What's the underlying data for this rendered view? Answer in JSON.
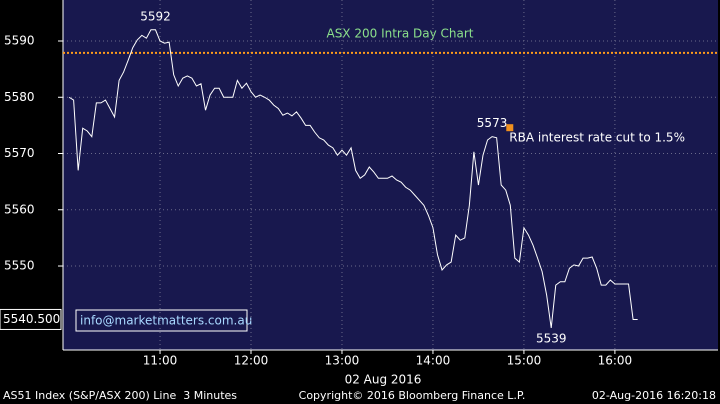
{
  "chart_data": {
    "type": "line",
    "title": "ASX 200 Intra Day Chart",
    "title_color": "#8be08b",
    "x_label": "02 Aug 2016",
    "x": [
      "10:00",
      "10:03",
      "10:06",
      "10:09",
      "10:12",
      "10:15",
      "10:18",
      "10:21",
      "10:24",
      "10:27",
      "10:30",
      "10:33",
      "10:36",
      "10:39",
      "10:42",
      "10:45",
      "10:48",
      "10:51",
      "10:54",
      "10:57",
      "11:00",
      "11:03",
      "11:06",
      "11:09",
      "11:12",
      "11:15",
      "11:18",
      "11:21",
      "11:24",
      "11:27",
      "11:30",
      "11:33",
      "11:36",
      "11:39",
      "11:42",
      "11:45",
      "11:48",
      "11:51",
      "11:54",
      "11:57",
      "12:00",
      "12:03",
      "12:06",
      "12:09",
      "12:12",
      "12:15",
      "12:18",
      "12:21",
      "12:24",
      "12:27",
      "12:30",
      "12:33",
      "12:36",
      "12:39",
      "12:42",
      "12:45",
      "12:48",
      "12:51",
      "12:54",
      "12:57",
      "13:00",
      "13:03",
      "13:06",
      "13:09",
      "13:12",
      "13:15",
      "13:18",
      "13:21",
      "13:24",
      "13:27",
      "13:30",
      "13:33",
      "13:36",
      "13:39",
      "13:42",
      "13:45",
      "13:48",
      "13:51",
      "13:54",
      "13:57",
      "14:00",
      "14:03",
      "14:06",
      "14:09",
      "14:12",
      "14:15",
      "14:18",
      "14:21",
      "14:24",
      "14:27",
      "14:30",
      "14:33",
      "14:36",
      "14:39",
      "14:42",
      "14:45",
      "14:48",
      "14:51",
      "14:54",
      "14:57",
      "15:00",
      "15:03",
      "15:06",
      "15:09",
      "15:12",
      "15:15",
      "15:18",
      "15:21",
      "15:24",
      "15:27",
      "15:30",
      "15:33",
      "15:36",
      "15:39",
      "15:42",
      "15:45",
      "15:48",
      "15:51",
      "15:54",
      "15:57",
      "16:00",
      "16:03",
      "16:06",
      "16:09",
      "16:12",
      "16:15"
    ],
    "series": [
      {
        "name": "AS51 Index",
        "color": "#ffffff",
        "values": [
          5580,
          5579.5,
          5567,
          5574.5,
          5574,
          5573,
          5579,
          5579,
          5579.5,
          5578,
          5576.5,
          5583,
          5584.5,
          5586.6,
          5588.8,
          5590.2,
          5591,
          5590.5,
          5592,
          5592,
          5590,
          5589.6,
          5589.8,
          5584,
          5582,
          5583.4,
          5583.8,
          5583.4,
          5582,
          5582.4,
          5577.7,
          5580.4,
          5581.6,
          5581.6,
          5580,
          5580,
          5580,
          5583,
          5581.6,
          5582.5,
          5581,
          5580,
          5580.4,
          5580,
          5579.5,
          5578.6,
          5578,
          5576.8,
          5577.2,
          5576.7,
          5577.4,
          5576.3,
          5575,
          5575,
          5573.8,
          5572.8,
          5572.4,
          5571.5,
          5571,
          5569.7,
          5570.6,
          5569.7,
          5571,
          5567,
          5565.6,
          5566.2,
          5567.6,
          5566.7,
          5565.6,
          5565.6,
          5565.6,
          5566,
          5565.3,
          5564.9,
          5564,
          5563.5,
          5562.6,
          5561.7,
          5560.8,
          5559,
          5556.8,
          5552,
          5549.3,
          5550.2,
          5550.7,
          5555.5,
          5554.6,
          5555,
          5560.8,
          5570.3,
          5564.4,
          5569.7,
          5572.4,
          5573,
          5572.8,
          5564.4,
          5563.5,
          5560.8,
          5551.4,
          5550.7,
          5556.8,
          5555.5,
          5553.7,
          5551.4,
          5549,
          5544.8,
          5539,
          5546.6,
          5547.2,
          5547.2,
          5549.6,
          5550.2,
          5550,
          5551.4,
          5551.4,
          5551.6,
          5549.6,
          5546.6,
          5546.6,
          5547.5,
          5546.8,
          5546.8,
          5546.8,
          5546.8,
          5540.5,
          5540.5
        ]
      }
    ],
    "xlim": [
      "09:56",
      "17:08"
    ],
    "xticks": [
      "11:00",
      "12:00",
      "13:00",
      "14:00",
      "15:00",
      "16:00"
    ],
    "ylim": [
      5535.07,
      5597.29
    ],
    "yticks": [
      5550,
      5560,
      5570,
      5580,
      5590
    ],
    "grid": true,
    "point_labels": [
      {
        "x": "10:57",
        "value": 5592
      },
      {
        "x": "14:39",
        "value": 5573
      },
      {
        "x": "15:18",
        "value": 5539
      }
    ],
    "reference_line": {
      "value": 5587.9,
      "color": "#ff9a1a"
    },
    "event": {
      "x": "14:51",
      "value": 5574.5,
      "text": "RBA interest rate cut to 1.5%",
      "color": "#f0901e"
    },
    "last_value": {
      "value": 5540.5,
      "label": "5540.500"
    },
    "watermark": "info@marketmatters.com.au"
  },
  "footer": {
    "left": "AS51 Index (S&P/ASX 200) Line  3 Minutes",
    "center": "Copyright© 2016 Bloomberg Finance L.P.",
    "right": "02-Aug-2016 16:20:18"
  }
}
